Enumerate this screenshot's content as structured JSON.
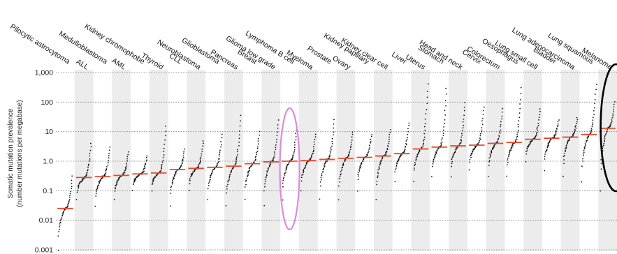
{
  "chart_data": {
    "type": "scatter",
    "title": "",
    "xlabel": "",
    "ylabel_line1": "Somatic mutation prevalence",
    "ylabel_line2": "(number mutations per megabase)",
    "yscale": "log",
    "ylim": [
      0.001,
      1000
    ],
    "yticks": [
      {
        "value": 1000,
        "label": "1,000"
      },
      {
        "value": 100,
        "label": "100"
      },
      {
        "value": 10,
        "label": "10"
      },
      {
        "value": 1,
        "label": "1.0"
      },
      {
        "value": 0.1,
        "label": "0.1"
      },
      {
        "value": 0.01,
        "label": "0.01"
      },
      {
        "value": 0.001,
        "label": "0.001"
      }
    ],
    "grid": "dotted horizontal lines at each decade",
    "alternating_column_shading": true,
    "median_color": "#e8492a",
    "point_color": "#111111",
    "categories": [
      "Pilocytic astrocytoma",
      "ALL",
      "Medulloblastoma",
      "AML",
      "Kidney chromophobe",
      "Thyroid",
      "CLL",
      "Neuroblastoma",
      "Glioblastoma",
      "Pancreas",
      "Breast",
      "Glioma low grade",
      "Lymphoma B cell",
      "Myeloma",
      "Prostate",
      "Ovary",
      "Kidney papillary",
      "Kidney clear cell",
      "Liver",
      "Uterus",
      "Stomach",
      "Head and neck",
      "Cervix",
      "Colorectum",
      "Oesophagus",
      "Lung small cell",
      "Bladder",
      "Lung adenocarcinoma",
      "Lung squamous",
      "Melanoma"
    ],
    "medians": [
      0.025,
      0.28,
      0.3,
      0.33,
      0.37,
      0.4,
      0.52,
      0.57,
      0.62,
      0.68,
      0.82,
      0.95,
      1.0,
      1.05,
      1.15,
      1.25,
      1.35,
      1.5,
      1.8,
      2.6,
      3.0,
      3.3,
      3.5,
      4.0,
      4.3,
      5.5,
      6.0,
      6.5,
      8.0,
      13.0
    ],
    "sample_ranges": [
      [
        0.001,
        0.3
      ],
      [
        0.05,
        4
      ],
      [
        0.03,
        3
      ],
      [
        0.05,
        2
      ],
      [
        0.1,
        1.5
      ],
      [
        0.1,
        15
      ],
      [
        0.03,
        2.5
      ],
      [
        0.1,
        5
      ],
      [
        0.05,
        8
      ],
      [
        0.03,
        35
      ],
      [
        0.05,
        10
      ],
      [
        0.03,
        25
      ],
      [
        0.05,
        15
      ],
      [
        0.1,
        8
      ],
      [
        0.05,
        25
      ],
      [
        0.05,
        10
      ],
      [
        0.1,
        8
      ],
      [
        0.05,
        12
      ],
      [
        0.2,
        20
      ],
      [
        0.2,
        400
      ],
      [
        0.3,
        300
      ],
      [
        0.3,
        100
      ],
      [
        0.5,
        70
      ],
      [
        0.3,
        60
      ],
      [
        0.3,
        300
      ],
      [
        1,
        60
      ],
      [
        0.5,
        25
      ],
      [
        0.3,
        30
      ],
      [
        0.2,
        400
      ],
      [
        0.1,
        100
      ]
    ],
    "annotations": [
      {
        "shape": "ellipse",
        "color": "#e08ad8",
        "category": "Lymphoma B cell"
      },
      {
        "shape": "ellipse",
        "color": "#000000",
        "category": "Melanoma"
      }
    ]
  }
}
